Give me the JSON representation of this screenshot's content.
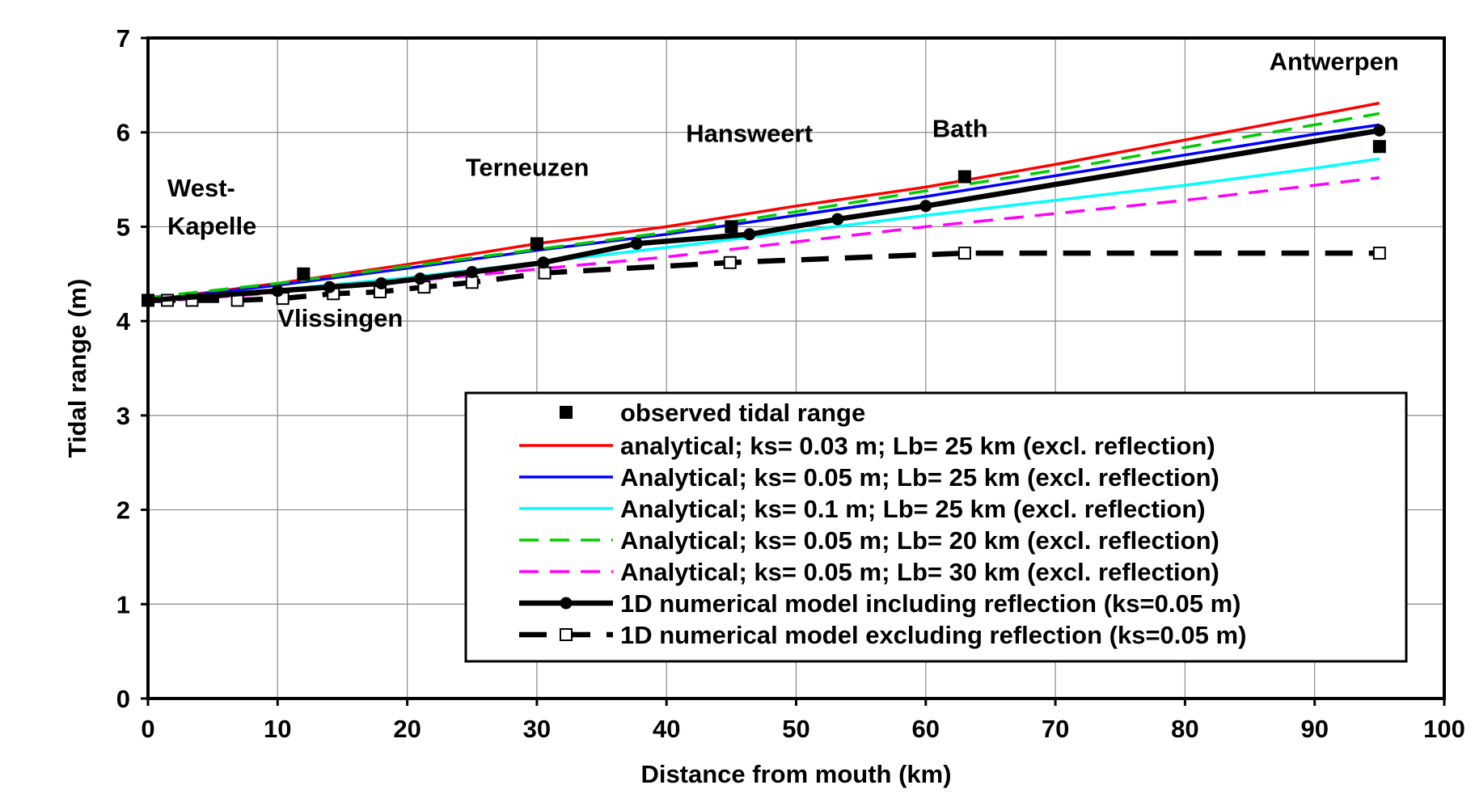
{
  "chart_data": {
    "type": "line",
    "title": "",
    "xlabel": "Distance from mouth (km)",
    "ylabel": "Tidal range (m)",
    "xlim": [
      0,
      100
    ],
    "ylim": [
      0,
      7
    ],
    "x_ticks": [
      "0",
      "10",
      "20",
      "30",
      "40",
      "50",
      "60",
      "70",
      "80",
      "90",
      "100"
    ],
    "y_ticks": [
      "0",
      "1",
      "2",
      "3",
      "4",
      "5",
      "6",
      "7"
    ],
    "grid": true,
    "legend_position": "bottom-right",
    "annotations": [
      {
        "text": "West-",
        "x": 1.5,
        "y": 5.32
      },
      {
        "text": "Kapelle",
        "x": 1.5,
        "y": 4.92
      },
      {
        "text": "Vlissingen",
        "x": 10,
        "y": 3.94
      },
      {
        "text": "Terneuzen",
        "x": 24.5,
        "y": 5.54
      },
      {
        "text": "Hansweert",
        "x": 41.5,
        "y": 5.9
      },
      {
        "text": "Bath",
        "x": 60.5,
        "y": 5.95
      },
      {
        "text": "Antwerpen",
        "x": 86.5,
        "y": 6.66
      }
    ],
    "series": [
      {
        "name": "observed tidal range",
        "style": "markers",
        "marker": "filled-square",
        "color": "#000000",
        "x": [
          0,
          12,
          30,
          45,
          63,
          95
        ],
        "y": [
          4.22,
          4.5,
          4.82,
          5.0,
          5.53,
          5.85
        ]
      },
      {
        "name": "analytical; ks= 0.03 m; Lb= 25 km (excl. reflection)",
        "style": "solid",
        "color": "#ff0000",
        "x": [
          0,
          10,
          20,
          30,
          40,
          50,
          60,
          70,
          80,
          90,
          95
        ],
        "y": [
          4.22,
          4.4,
          4.6,
          4.82,
          5.0,
          5.22,
          5.42,
          5.66,
          5.92,
          6.18,
          6.31
        ]
      },
      {
        "name": "Analytical; ks= 0.05 m; Lb= 25 km (excl. reflection)",
        "style": "solid",
        "color": "#0000ff",
        "x": [
          0,
          10,
          20,
          30,
          40,
          50,
          60,
          70,
          80,
          90,
          95
        ],
        "y": [
          4.22,
          4.38,
          4.56,
          4.75,
          4.92,
          5.12,
          5.32,
          5.54,
          5.76,
          5.98,
          6.08
        ]
      },
      {
        "name": "Analytical; ks= 0.1  m;  Lb= 25 km (excl. reflection)",
        "style": "solid",
        "color": "#00ffff",
        "x": [
          0,
          10,
          20,
          30,
          40,
          50,
          60,
          70,
          80,
          90,
          95
        ],
        "y": [
          4.22,
          4.33,
          4.46,
          4.62,
          4.78,
          4.95,
          5.12,
          5.28,
          5.44,
          5.62,
          5.72
        ]
      },
      {
        "name": "Analytical; ks= 0.05 m; Lb= 20 km (excl. reflection)",
        "style": "dashed",
        "color": "#00cc00",
        "x": [
          0,
          10,
          20,
          30,
          40,
          50,
          60,
          70,
          80,
          90,
          95
        ],
        "y": [
          4.25,
          4.4,
          4.58,
          4.76,
          4.94,
          5.16,
          5.38,
          5.6,
          5.84,
          6.08,
          6.2
        ]
      },
      {
        "name": "Analytical; ks= 0.05 m; Lb= 30 km (excl. reflection)",
        "style": "dashed",
        "color": "#ff00ff",
        "x": [
          0,
          10,
          20,
          30,
          40,
          50,
          60,
          70,
          80,
          90,
          95
        ],
        "y": [
          4.2,
          4.3,
          4.42,
          4.55,
          4.68,
          4.84,
          5.0,
          5.14,
          5.28,
          5.44,
          5.52
        ]
      },
      {
        "name": "1D numerical model including reflection  (ks=0.05 m)",
        "style": "solid-thick",
        "marker": "filled-circle",
        "color": "#000000",
        "x": [
          0,
          10,
          14,
          18,
          21,
          25,
          30.5,
          37.7,
          46.4,
          53.2,
          60,
          95
        ],
        "y": [
          4.22,
          4.32,
          4.36,
          4.4,
          4.45,
          4.52,
          4.62,
          4.82,
          4.92,
          5.08,
          5.22,
          6.02
        ]
      },
      {
        "name": "1D numerical model excluding reflection (ks=0.05 m)",
        "style": "dashed-thick",
        "marker": "open-square",
        "color": "#000000",
        "x": [
          0,
          1.5,
          3.4,
          6.9,
          10.4,
          14.3,
          17.9,
          21.3,
          25,
          30.6,
          44.9,
          63,
          95
        ],
        "y": [
          4.22,
          4.22,
          4.22,
          4.22,
          4.24,
          4.29,
          4.31,
          4.36,
          4.41,
          4.51,
          4.62,
          4.72,
          4.72
        ]
      }
    ]
  }
}
